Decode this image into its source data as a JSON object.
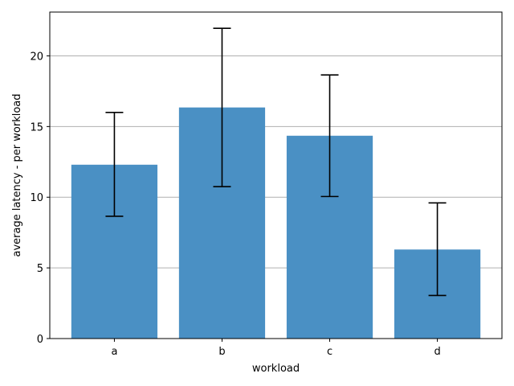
{
  "chart_data": {
    "type": "bar",
    "title": "",
    "xlabel": "workload",
    "ylabel": "average latency - per workload",
    "categories": [
      "a",
      "b",
      "c",
      "d"
    ],
    "values": [
      12.3,
      16.35,
      14.35,
      6.3
    ],
    "error_low": [
      8.65,
      10.75,
      10.05,
      3.05
    ],
    "error_high": [
      16.0,
      21.95,
      18.65,
      9.6
    ],
    "ylim": [
      0,
      23.1
    ],
    "yticks": [
      0,
      5,
      10,
      15,
      20
    ],
    "ytick_labels": [
      "0",
      "5",
      "10",
      "15",
      "20"
    ],
    "grid": "y",
    "legend": "none",
    "bar_color": "#4a90c4",
    "error_color": "#000000",
    "grid_color": "#b0b0b0"
  }
}
